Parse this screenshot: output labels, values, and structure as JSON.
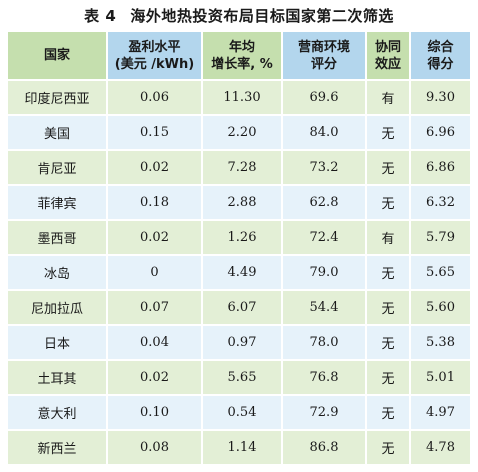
{
  "caption": {
    "number": "表 4",
    "title": "海外地热投资布局目标国家第二次筛选"
  },
  "headers": [
    [
      "国家"
    ],
    [
      "盈利水平",
      "(美元 /kWh)"
    ],
    [
      "年均",
      "增长率, %"
    ],
    [
      "营商环境",
      "评分"
    ],
    [
      "协同",
      "效应"
    ],
    [
      "综合",
      "得分"
    ]
  ],
  "header_colors": [
    "#c5dfae",
    "#b3d6ed",
    "#c5dfae",
    "#b3d6ed",
    "#c5dfae",
    "#b3d6ed"
  ],
  "row_colors": [
    "#e3efd6",
    "#e6f2fa"
  ],
  "rows": [
    [
      "印度尼西亚",
      "0.06",
      "11.30",
      "69.6",
      "有",
      "9.30"
    ],
    [
      "美国",
      "0.15",
      "2.20",
      "84.0",
      "无",
      "6.96"
    ],
    [
      "肯尼亚",
      "0.02",
      "7.28",
      "73.2",
      "无",
      "6.86"
    ],
    [
      "菲律宾",
      "0.18",
      "2.88",
      "62.8",
      "无",
      "6.32"
    ],
    [
      "墨西哥",
      "0.02",
      "1.26",
      "72.4",
      "有",
      "5.79"
    ],
    [
      "冰岛",
      "0",
      "4.49",
      "79.0",
      "无",
      "5.65"
    ],
    [
      "尼加拉瓜",
      "0.07",
      "6.07",
      "54.4",
      "无",
      "5.60"
    ],
    [
      "日本",
      "0.04",
      "0.97",
      "78.0",
      "无",
      "5.38"
    ],
    [
      "土耳其",
      "0.02",
      "5.65",
      "76.8",
      "无",
      "5.01"
    ],
    [
      "意大利",
      "0.10",
      "0.54",
      "72.9",
      "无",
      "4.97"
    ],
    [
      "新西兰",
      "0.08",
      "1.14",
      "86.8",
      "无",
      "4.78"
    ]
  ]
}
